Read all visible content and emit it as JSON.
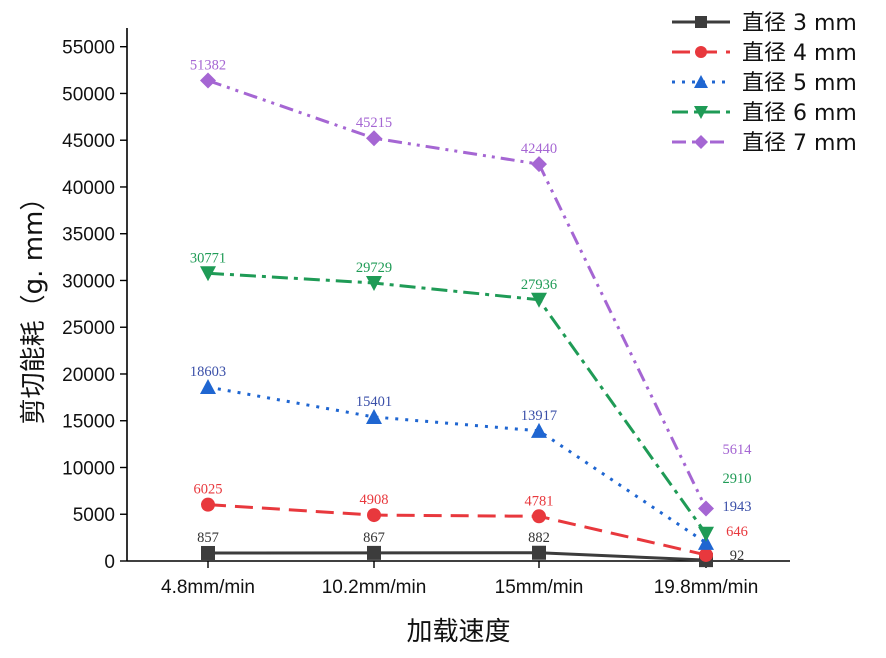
{
  "chart_data": {
    "type": "line",
    "title": "",
    "xlabel": "加载速度",
    "ylabel": "剪切能耗（g. mm）",
    "categories": [
      "4.8mm/min",
      "10.2mm/min",
      "15mm/min",
      "19.8mm/min"
    ],
    "ylim": [
      0,
      57000
    ],
    "yticks": [
      0,
      5000,
      10000,
      15000,
      20000,
      25000,
      30000,
      35000,
      40000,
      45000,
      50000,
      55000
    ],
    "ytick_labels": [
      "0",
      "5000",
      "10000",
      "15000",
      "20000",
      "25000",
      "30000",
      "35000",
      "40000",
      "45000",
      "50000",
      "55000"
    ],
    "grid": false,
    "legend_position": "top-right",
    "series": [
      {
        "name": "直径 3 mm",
        "values": [
          857,
          867,
          882,
          92
        ],
        "labels": [
          "857",
          "867",
          "882",
          "92"
        ],
        "color": "#3c3c3c",
        "label_color": "#333333",
        "marker": "square",
        "dash": "solid"
      },
      {
        "name": "直径 4 mm",
        "values": [
          6025,
          4908,
          4781,
          646
        ],
        "labels": [
          "6025",
          "4908",
          "4781",
          "646"
        ],
        "color": "#e8383d",
        "label_color": "#e8383d",
        "marker": "circle",
        "dash": "dash"
      },
      {
        "name": "直径 5 mm",
        "values": [
          18603,
          15401,
          13917,
          1943
        ],
        "labels": [
          "18603",
          "15401",
          "13917",
          "1943"
        ],
        "color": "#1f66d1",
        "label_color": "#3a4fa8",
        "marker": "triangle-up",
        "dash": "dot"
      },
      {
        "name": "直径 6 mm",
        "values": [
          30771,
          29729,
          27936,
          2910
        ],
        "labels": [
          "30771",
          "29729",
          "27936",
          "2910"
        ],
        "color": "#1f9b56",
        "label_color": "#1f9b56",
        "marker": "triangle-down",
        "dash": "dashdot"
      },
      {
        "name": "直径 7 mm",
        "values": [
          51382,
          45215,
          42440,
          5614
        ],
        "labels": [
          "51382",
          "45215",
          "42440",
          "5614"
        ],
        "color": "#a566d3",
        "label_color": "#a566d3",
        "marker": "diamond",
        "dash": "dashdotdot"
      }
    ]
  }
}
